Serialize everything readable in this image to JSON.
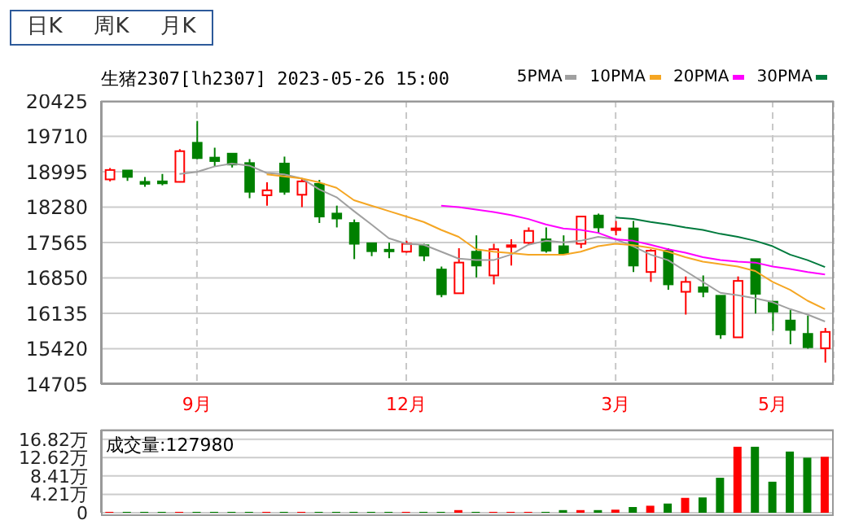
{
  "chart_data": [
    {
      "type": "candlestick",
      "title": "生猪2307[lh2307] 2023-05-26 15:00",
      "annotations": [
        "日K",
        "周K",
        "月K"
      ],
      "categories": [
        null,
        null,
        null,
        null,
        null,
        "9月",
        null,
        null,
        null,
        null,
        null,
        null,
        null,
        null,
        null,
        null,
        null,
        "12月",
        null,
        null,
        null,
        null,
        null,
        null,
        null,
        null,
        null,
        null,
        null,
        "3月",
        null,
        null,
        null,
        null,
        null,
        null,
        null,
        null,
        "5月",
        null,
        null,
        null
      ],
      "ohlc": [
        [
          18840,
          19070,
          18800,
          19030
        ],
        [
          19020,
          19020,
          18810,
          18890
        ],
        [
          18790,
          18890,
          18690,
          18750
        ],
        [
          18800,
          18950,
          18720,
          18760
        ],
        [
          18790,
          19450,
          18780,
          19410
        ],
        [
          19580,
          20020,
          19250,
          19270
        ],
        [
          19280,
          19480,
          19100,
          19210
        ],
        [
          19360,
          19360,
          19080,
          19140
        ],
        [
          19170,
          19250,
          18460,
          18590
        ],
        [
          18520,
          18780,
          18310,
          18620
        ],
        [
          19160,
          19300,
          18530,
          18590
        ],
        [
          18530,
          18860,
          18280,
          18800
        ],
        [
          18750,
          18830,
          17960,
          18090
        ],
        [
          18150,
          18310,
          17870,
          18050
        ],
        [
          17960,
          18030,
          17230,
          17540
        ],
        [
          17550,
          17550,
          17290,
          17390
        ],
        [
          17420,
          17560,
          17250,
          17400
        ],
        [
          17380,
          17600,
          17360,
          17540
        ],
        [
          17510,
          17540,
          17190,
          17300
        ],
        [
          17020,
          17080,
          16460,
          16520
        ],
        [
          16540,
          17450,
          16540,
          17160
        ],
        [
          17380,
          17710,
          16860,
          17100
        ],
        [
          16900,
          17540,
          16720,
          17430
        ],
        [
          17490,
          17630,
          17100,
          17510
        ],
        [
          17560,
          17870,
          17520,
          17800
        ],
        [
          17630,
          17870,
          17360,
          17400
        ],
        [
          17490,
          17710,
          17320,
          17340
        ],
        [
          17540,
          18090,
          17450,
          18090
        ],
        [
          18110,
          18150,
          17760,
          17870
        ],
        [
          17830,
          18000,
          17710,
          17850
        ],
        [
          17850,
          18000,
          16970,
          17100
        ],
        [
          16970,
          17430,
          16770,
          17400
        ],
        [
          17400,
          17450,
          16610,
          16720
        ],
        [
          16570,
          16880,
          16110,
          16770
        ],
        [
          16660,
          16900,
          16460,
          16570
        ],
        [
          16490,
          16490,
          15620,
          15710
        ],
        [
          15650,
          16880,
          15650,
          16790
        ],
        [
          17230,
          17230,
          16130,
          16530
        ],
        [
          16370,
          16370,
          15780,
          16170
        ],
        [
          15990,
          16200,
          15510,
          15800
        ],
        [
          15720,
          16090,
          15420,
          15450
        ],
        [
          15430,
          15840,
          15140,
          15760
        ]
      ],
      "colors": [
        "#ff0000",
        "#008000",
        "#008000",
        "#008000",
        "#ff0000",
        "#008000",
        "#008000",
        "#008000",
        "#008000",
        "#ff0000",
        "#008000",
        "#ff0000",
        "#008000",
        "#008000",
        "#008000",
        "#008000",
        "#008000",
        "#ff0000",
        "#008000",
        "#008000",
        "#ff0000",
        "#008000",
        "#ff0000",
        "#ff0000",
        "#ff0000",
        "#008000",
        "#008000",
        "#ff0000",
        "#008000",
        "#ff0000",
        "#008000",
        "#ff0000",
        "#008000",
        "#ff0000",
        "#008000",
        "#008000",
        "#ff0000",
        "#008000",
        "#008000",
        "#008000",
        "#008000",
        "#ff0000"
      ],
      "series": [
        {
          "name": "5PMA",
          "type": "line",
          "color": "#a0a0a0",
          "values": [
            null,
            null,
            null,
            null,
            18950,
            18990,
            19100,
            19160,
            19120,
            18970,
            18940,
            18860,
            18640,
            18480,
            18200,
            17930,
            17650,
            17540,
            17520,
            17380,
            17240,
            17210,
            17210,
            17320,
            17520,
            17600,
            17570,
            17600,
            17680,
            17630,
            17490,
            17320,
            17210,
            16990,
            16770,
            16550,
            16500,
            16440,
            16360,
            16220,
            16110,
            15970
          ]
        },
        {
          "name": "10PMA",
          "type": "line",
          "color": "#f5a623",
          "values": [
            null,
            null,
            null,
            null,
            null,
            null,
            null,
            null,
            null,
            18940,
            18900,
            18860,
            18780,
            18670,
            18420,
            18310,
            18200,
            18090,
            17980,
            17820,
            17680,
            17430,
            17380,
            17350,
            17320,
            17320,
            17320,
            17380,
            17490,
            17540,
            17510,
            17460,
            17380,
            17270,
            17180,
            17130,
            17080,
            16990,
            16770,
            16610,
            16390,
            16220
          ]
        },
        {
          "name": "20PMA",
          "type": "line",
          "color": "#ff00ff",
          "values": [
            null,
            null,
            null,
            null,
            null,
            null,
            null,
            null,
            null,
            null,
            null,
            null,
            null,
            null,
            null,
            null,
            null,
            null,
            null,
            18310,
            18280,
            18230,
            18180,
            18120,
            18040,
            17930,
            17850,
            17820,
            17760,
            17630,
            17600,
            17520,
            17430,
            17360,
            17270,
            17210,
            17180,
            17160,
            17080,
            17030,
            16970,
            16920
          ]
        },
        {
          "name": "30PMA",
          "type": "line",
          "color": "#007a3d",
          "values": [
            null,
            null,
            null,
            null,
            null,
            null,
            null,
            null,
            null,
            null,
            null,
            null,
            null,
            null,
            null,
            null,
            null,
            null,
            null,
            null,
            null,
            null,
            null,
            null,
            null,
            null,
            null,
            null,
            null,
            18070,
            18040,
            17980,
            17930,
            17870,
            17820,
            17740,
            17680,
            17600,
            17490,
            17320,
            17210,
            17070
          ]
        }
      ],
      "ylim": [
        14705,
        20425
      ],
      "yticks": [
        14705,
        15420,
        16135,
        16850,
        17565,
        18280,
        18995,
        19710,
        20425
      ],
      "grid": true,
      "legend": "top right",
      "marker": "none"
    },
    {
      "type": "bar",
      "title": "成交量:127980",
      "categories": [
        null,
        null,
        null,
        null,
        null,
        null,
        null,
        null,
        null,
        null,
        null,
        null,
        null,
        null,
        null,
        null,
        null,
        null,
        null,
        null,
        null,
        null,
        null,
        null,
        null,
        null,
        null,
        null,
        null,
        null,
        null,
        null,
        null,
        null,
        null,
        null,
        null,
        null,
        null,
        null,
        null,
        null
      ],
      "values": [
        0.2,
        0.2,
        0.2,
        0.2,
        0.2,
        0.2,
        0.2,
        0.2,
        0.2,
        0.2,
        0.2,
        0.2,
        0.2,
        0.2,
        0.2,
        0.2,
        0.2,
        0.2,
        0.2,
        0.2,
        0.6,
        0.2,
        0.2,
        0.2,
        0.2,
        0.2,
        0.6,
        0.6,
        0.6,
        0.7,
        1.3,
        1.6,
        2.1,
        3.4,
        3.5,
        8.0,
        15.1,
        15.1,
        7.1,
        14.0,
        12.6,
        12.8
      ],
      "colors": [
        "#ff0000",
        "#008000",
        "#008000",
        "#008000",
        "#ff0000",
        "#008000",
        "#008000",
        "#008000",
        "#008000",
        "#ff0000",
        "#008000",
        "#ff0000",
        "#008000",
        "#008000",
        "#008000",
        "#008000",
        "#008000",
        "#ff0000",
        "#008000",
        "#008000",
        "#ff0000",
        "#008000",
        "#ff0000",
        "#ff0000",
        "#ff0000",
        "#008000",
        "#008000",
        "#ff0000",
        "#008000",
        "#ff0000",
        "#008000",
        "#ff0000",
        "#008000",
        "#ff0000",
        "#008000",
        "#008000",
        "#ff0000",
        "#008000",
        "#008000",
        "#008000",
        "#008000",
        "#ff0000"
      ],
      "ylim": [
        0,
        19
      ],
      "yticks": [
        0,
        {
          "value": 4.21,
          "label": "4.21万"
        },
        {
          "value": 8.41,
          "label": "8.41万"
        },
        {
          "value": 12.62,
          "label": "12.62万"
        },
        {
          "value": 16.82,
          "label": "16.82万"
        }
      ],
      "grid": "y",
      "tick_labels": "y"
    }
  ]
}
